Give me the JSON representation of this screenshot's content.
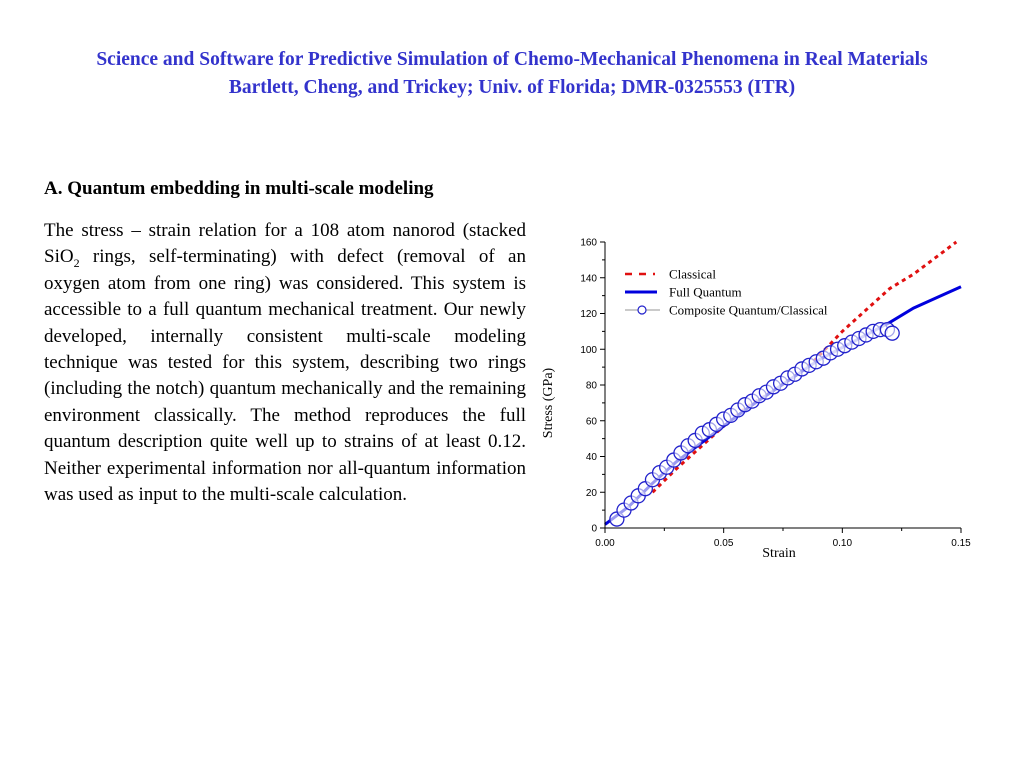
{
  "header": {
    "title": "Science and Software for Predictive Simulation of  Chemo-Mechanical Phenomena in Real Materials",
    "subtitle": "Bartlett, Cheng, and Trickey; Univ. of Florida; DMR-0325553 (ITR)",
    "color": "#3333cc"
  },
  "section": {
    "title": "A. Quantum embedding in multi-scale modeling",
    "para_pre": "The stress – strain relation for a 108 atom nanorod (stacked SiO",
    "para_sub": "2",
    "para_post": " rings, self-terminating) with defect (removal of an oxygen atom from one ring) was considered. This system is accessible to a full quantum mechanical treatment.  Our newly developed, internally consistent multi-scale modeling technique was tested for this system, describing two rings (including the notch) quantum mechanically and the remaining environment classically. The method reproduces the full quantum description quite well up to strains of at least 0.12. Neither experimental information nor all-quantum information was used as input to the multi-scale calculation."
  },
  "chart_data": {
    "type": "line",
    "title": "",
    "xlabel": "Strain",
    "ylabel": "Stress (GPa)",
    "xlim": [
      0.0,
      0.15
    ],
    "ylim": [
      0,
      160
    ],
    "x_ticks": [
      "0.00",
      "0.05",
      "0.10",
      "0.15"
    ],
    "y_ticks": [
      "0",
      "20",
      "40",
      "60",
      "80",
      "100",
      "120",
      "140",
      "160"
    ],
    "grid": false,
    "legend_position": "upper-left",
    "series": [
      {
        "name": "Classical",
        "style": "dashed",
        "color": "#e01010",
        "x": [
          0.02,
          0.03,
          0.04,
          0.05,
          0.06,
          0.07,
          0.08,
          0.087,
          0.1,
          0.11,
          0.12,
          0.13,
          0.14,
          0.148
        ],
        "values": [
          20,
          33,
          45,
          57,
          68,
          76,
          85,
          92,
          110,
          122,
          134,
          142,
          152,
          160
        ]
      },
      {
        "name": "Full Quantum",
        "style": "solid",
        "color": "#0000dd",
        "x": [
          0.0,
          0.01,
          0.02,
          0.03,
          0.04,
          0.05,
          0.06,
          0.07,
          0.08,
          0.09,
          0.1,
          0.11,
          0.12,
          0.13,
          0.14,
          0.15
        ],
        "values": [
          2,
          12,
          25,
          37,
          47,
          57,
          67,
          76,
          85,
          94,
          101,
          108,
          115,
          123,
          129,
          135
        ]
      },
      {
        "name": "Composite Quantum/Classical",
        "style": "open-circle-markers",
        "color": "#2222cc",
        "x": [
          0.005,
          0.008,
          0.011,
          0.014,
          0.017,
          0.02,
          0.023,
          0.026,
          0.029,
          0.032,
          0.035,
          0.038,
          0.041,
          0.044,
          0.047,
          0.05,
          0.053,
          0.056,
          0.059,
          0.062,
          0.065,
          0.068,
          0.071,
          0.074,
          0.077,
          0.08,
          0.083,
          0.086,
          0.089,
          0.092,
          0.095,
          0.098,
          0.101,
          0.104,
          0.107,
          0.11,
          0.113,
          0.116,
          0.119,
          0.121
        ],
        "values": [
          5,
          10,
          14,
          18,
          22,
          27,
          31,
          34,
          38,
          42,
          46,
          49,
          53,
          55,
          58,
          61,
          63,
          66,
          69,
          71,
          74,
          76,
          79,
          81,
          84,
          86,
          89,
          91,
          93,
          95,
          98,
          100,
          102,
          104,
          106,
          108,
          110,
          111,
          111,
          109
        ]
      }
    ]
  }
}
